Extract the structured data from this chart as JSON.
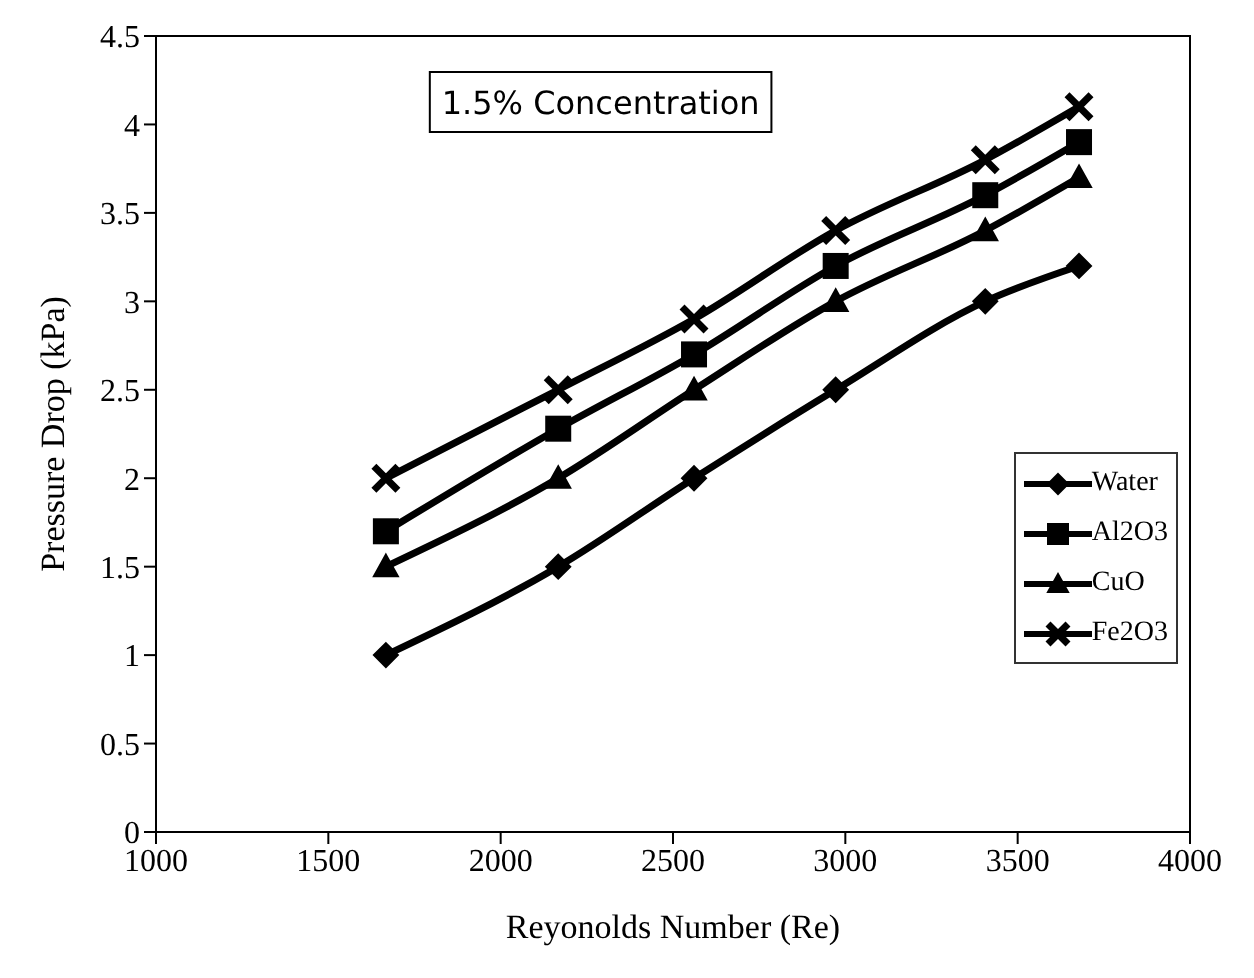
{
  "chart_data": {
    "type": "line",
    "xlabel": "Reyonolds Number (Re)",
    "ylabel": "Pressure Drop (kPa)",
    "annotations": [
      "1.5% Concentration"
    ],
    "x": [
      1667,
      2167,
      2561,
      2972,
      3406,
      3678
    ],
    "series": [
      {
        "name": "Water",
        "color": "#000000",
        "marker": "diamond",
        "values": [
          1,
          1.5,
          2,
          2.5,
          3,
          3.2
        ]
      },
      {
        "name": "Al2O3",
        "color": "#000000",
        "marker": "square",
        "values": [
          1.7,
          2.28,
          2.7,
          3.2,
          3.6,
          3.9
        ]
      },
      {
        "name": "CuO",
        "color": "#000000",
        "marker": "triangle",
        "values": [
          1.5,
          2,
          2.5,
          3,
          3.4,
          3.7
        ]
      },
      {
        "name": "Fe2O3",
        "color": "#000000",
        "marker": "cross",
        "values": [
          2,
          2.5,
          2.9,
          3.4,
          3.8,
          4.1
        ]
      }
    ],
    "xlim": [
      1000,
      4000
    ],
    "xticks": [
      1000,
      1500,
      2000,
      2500,
      3000,
      3500,
      4000
    ],
    "ylim": [
      0,
      4.5
    ],
    "yticks": [
      0,
      0.5,
      1,
      1.5,
      2,
      2.5,
      3,
      3.5,
      4,
      4.5
    ],
    "grid": false,
    "legend": "right",
    "line_style": "solid"
  }
}
